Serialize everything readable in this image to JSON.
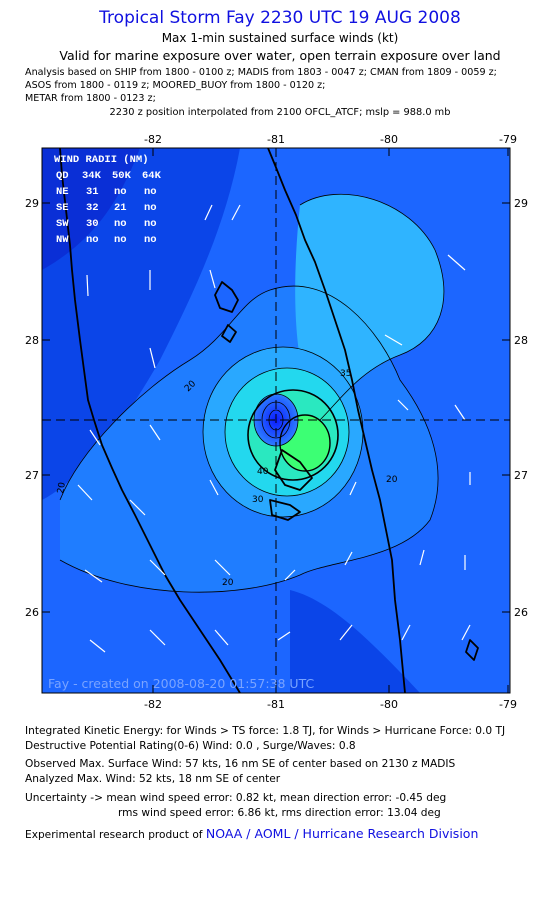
{
  "header": {
    "title": "Tropical Storm Fay 2230 UTC 19 AUG 2008",
    "subtitle": "Max 1-min sustained surface winds (kt)",
    "valid": "Valid for marine exposure over water, open terrain exposure over land"
  },
  "analysis_lines": [
    "Analysis based on  SHIP from 1800 - 0100 z;  MADIS from 1803 - 0047 z;  CMAN from 1809 - 0059 z;",
    "ASOS from 1800 - 0119 z;  MOORED_BUOY from 1800 - 0120 z;",
    "METAR from 1800 - 0123 z;"
  ],
  "position_line": "2230 z position interpolated from 2100 OFCL_ATCF; mslp = 988.0 mb",
  "map": {
    "lon_ticks": [
      "-82",
      "-81",
      "-80",
      "-79"
    ],
    "lat_ticks": [
      "29",
      "28",
      "27",
      "26"
    ],
    "center": {
      "lon": -81.0,
      "lat": 27.4
    },
    "contour_labels": [
      "20",
      "20",
      "20",
      "20",
      "30",
      "35",
      "40"
    ],
    "credit": "Fay - created on 2008-08-20 01:57:38 UTC",
    "wind_radii_table": {
      "title": "WIND RADII (NM)",
      "header": [
        "QD",
        "34K",
        "50K",
        "64K"
      ],
      "rows": [
        [
          "NE",
          "31",
          "no",
          "no"
        ],
        [
          "SE",
          "32",
          "21",
          "no"
        ],
        [
          "SW",
          "30",
          "no",
          "no"
        ],
        [
          "NW",
          "no",
          "no",
          "no"
        ]
      ]
    },
    "colors": {
      "background": "#1c66ff",
      "land_frame": "#0b45e8",
      "wind_core": "#3cff74"
    }
  },
  "footer": {
    "ike": "Integrated Kinetic Energy:  for Winds > TS force: 1.8 TJ,  for Winds > Hurricane Force: 0.0 TJ",
    "dpr": "Destructive Potential Rating(0-6)   Wind: 0.0 , Surge/Waves: 0.8",
    "observed": "Observed Max. Surface Wind: 57 kts, 16 nm SE of center based on 2130 z MADIS",
    "analyzed": "Analyzed Max. Wind: 52 kts, 18 nm SE of center",
    "uncert1": "Uncertainty -> mean wind speed error: 0.82 kt,   mean direction error:  -0.45 deg",
    "uncert2": "rms wind speed error: 6.86 kt,   rms direction error: 13.04 deg",
    "product_prefix": "Experimental research product of ",
    "product_org": "NOAA / AOML / Hurricane Research Division"
  }
}
